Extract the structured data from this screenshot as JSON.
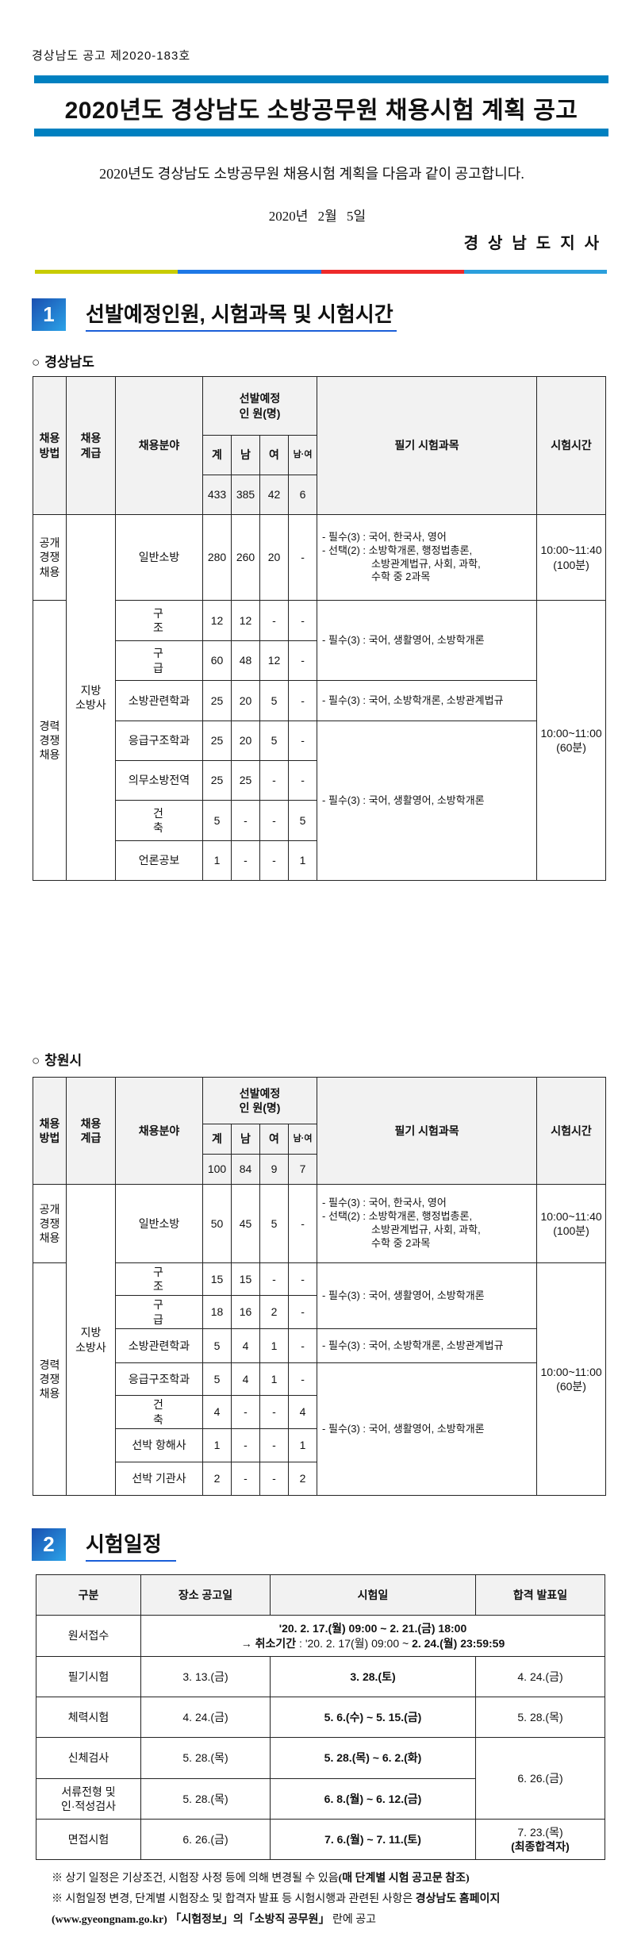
{
  "header": {
    "doc_number": "경상남도 공고 제2020-183호",
    "title": "2020년도 경상남도 소방공무원 채용시험 계획 공고",
    "intro": "2020년도 경상남도 소방공무원 채용시험 계획을 다음과 같이 공고합니다.",
    "date": "2020년 2월 5일",
    "signer": "경상남도지사",
    "bar_colors": [
      "#c8cc00",
      "#1e78e6",
      "#ee2a2a",
      "#2b9fdc"
    ],
    "title_bar_color": "#0080c0"
  },
  "section1": {
    "number": "1",
    "title": "선발예정인원, 시험과목 및 시험시간",
    "columns": {
      "method": "채용\n방법",
      "rank": "채용\n계급",
      "field": "채용분야",
      "quota": "선발예정\n인 원(명)",
      "total": "계",
      "male": "남",
      "female": "여",
      "both": "남·여",
      "subjects": "필기 시험과목",
      "time": "시험시간"
    },
    "tables": [
      {
        "region": "경상남도",
        "totals": [
          "433",
          "385",
          "42",
          "6"
        ],
        "open": {
          "method": "공개\n경쟁\n채용",
          "rank": "지방\n소방사",
          "field": "일반소방",
          "counts": [
            "280",
            "260",
            "20",
            "-"
          ],
          "subjects": [
            "- 필수(3) : 국어, 한국사, 영어",
            "- 선택(2) : 소방학개론, 행정법총론,",
            "소방관계법규, 사회, 과학,",
            "수학 중 2과목"
          ],
          "time": "10:00~11:40\n(100분)"
        },
        "career": {
          "method": "경력\n경쟁\n채용",
          "time": "10:00~11:00\n(60분)",
          "rows": [
            {
              "field": "구 조",
              "counts": [
                "12",
                "12",
                "-",
                "-"
              ]
            },
            {
              "field": "구 급",
              "counts": [
                "60",
                "48",
                "12",
                "-"
              ]
            },
            {
              "field": "소방관련학과",
              "counts": [
                "25",
                "20",
                "5",
                "-"
              ]
            },
            {
              "field": "응급구조학과",
              "counts": [
                "25",
                "20",
                "5",
                "-"
              ]
            },
            {
              "field": "의무소방전역",
              "counts": [
                "25",
                "25",
                "-",
                "-"
              ]
            },
            {
              "field": "건 축",
              "counts": [
                "5",
                "-",
                "-",
                "5"
              ]
            },
            {
              "field": "언론공보",
              "counts": [
                "1",
                "-",
                "-",
                "1"
              ]
            }
          ],
          "subjects_a": "- 필수(3) : 국어, 생활영어, 소방학개론",
          "subjects_b": "- 필수(3) : 국어, 소방학개론, 소방관계법규",
          "subjects_c": "- 필수(3) : 국어, 생활영어, 소방학개론"
        }
      },
      {
        "region": "창원시",
        "totals": [
          "100",
          "84",
          "9",
          "7"
        ],
        "open": {
          "method": "공개\n경쟁\n채용",
          "rank": "지방\n소방사",
          "field": "일반소방",
          "counts": [
            "50",
            "45",
            "5",
            "-"
          ],
          "subjects": [
            "- 필수(3) : 국어, 한국사, 영어",
            "- 선택(2) : 소방학개론, 행정법총론,",
            "소방관계법규, 사회, 과학,",
            "수학 중 2과목"
          ],
          "time": "10:00~11:40\n(100분)"
        },
        "career": {
          "method": "경력\n경쟁\n채용",
          "time": "10:00~11:00\n(60분)",
          "rows": [
            {
              "field": "구 조",
              "counts": [
                "15",
                "15",
                "-",
                "-"
              ]
            },
            {
              "field": "구 급",
              "counts": [
                "18",
                "16",
                "2",
                "-"
              ]
            },
            {
              "field": "소방관련학과",
              "counts": [
                "5",
                "4",
                "1",
                "-"
              ]
            },
            {
              "field": "응급구조학과",
              "counts": [
                "5",
                "4",
                "1",
                "-"
              ]
            },
            {
              "field": "건 축",
              "counts": [
                "4",
                "-",
                "-",
                "4"
              ]
            },
            {
              "field": "선박 항해사",
              "counts": [
                "1",
                "-",
                "-",
                "1"
              ]
            },
            {
              "field": "선박 기관사",
              "counts": [
                "2",
                "-",
                "-",
                "2"
              ]
            }
          ],
          "subjects_a": "- 필수(3) : 국어, 생활영어, 소방학개론",
          "subjects_b": "- 필수(3) : 국어, 소방학개론, 소방관계법규",
          "subjects_c": "- 필수(3) : 국어, 생활영어, 소방학개론"
        }
      }
    ]
  },
  "section2": {
    "number": "2",
    "title": "시험일정",
    "headers": [
      "구분",
      "장소 공고일",
      "시험일",
      "합격 발표일"
    ],
    "application": {
      "label": "원서접수",
      "line1": "'20. 2. 17.(월) 09:00 ~ 2. 21.(금) 18:00",
      "line2_prefix": "→ 취소기간",
      "line2_mid": " : '20. 2. 17(월) 09:00 ~ ",
      "line2_end": "2. 24.(월) 23:59:59"
    },
    "rows": [
      {
        "label": "필기시험",
        "notice": "3. 13.(금)",
        "exam": "3. 28.(토)",
        "result": "4. 24.(금)"
      },
      {
        "label": "체력시험",
        "notice": "4. 24.(금)",
        "exam": "5. 6.(수) ~ 5. 15.(금)",
        "result": "5. 28.(목)"
      },
      {
        "label": "신체검사",
        "notice": "5. 28.(목)",
        "exam": "5. 28.(목) ~ 6. 2.(화)",
        "result": "6. 26.(금)"
      },
      {
        "label": "서류전형 및\n인·적성검사",
        "notice": "5. 28.(목)",
        "exam": "6. 8.(월) ~ 6. 12.(금)"
      },
      {
        "label": "면접시험",
        "notice": "6. 26.(금)",
        "exam": "7. 6.(월) ~ 7. 11.(토)",
        "result": "7. 23.(목)",
        "result_note": "(최종합격자)"
      }
    ],
    "notes": {
      "n1_text": "※ 상기 일정은 기상조건, 시험장 사정 등에 의해 변경될 수 있음",
      "n1_bold": "(매 단계별 시험 공고문 참조)",
      "n2_text": "※ 시험일정 변경, 단계별 시험장소 및 합격자 발표 등 시험시행과 관련된 사항은 ",
      "n2_bold": "경상남도 홈페이지(www.gyeongnam.go.kr) 「시험정보」의「소방직 공무원」",
      "n2_end": " 란에 공고"
    }
  }
}
